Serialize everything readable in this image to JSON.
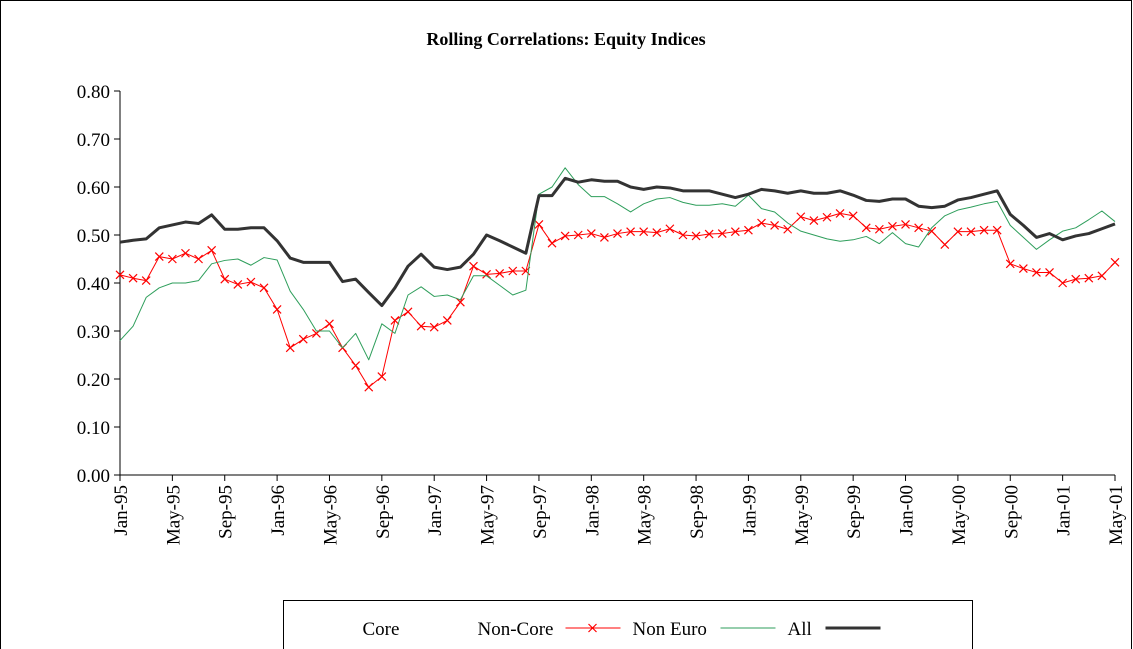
{
  "chart_data": {
    "type": "line",
    "title": "Rolling Correlations: Equity Indices",
    "categories": [
      "Jan-95",
      null,
      null,
      null,
      "May-95",
      null,
      null,
      null,
      "Sep-95",
      null,
      null,
      null,
      "Jan-96",
      null,
      null,
      null,
      "May-96",
      null,
      null,
      null,
      "Sep-96",
      null,
      null,
      null,
      "Jan-97",
      null,
      null,
      null,
      "May-97",
      null,
      null,
      null,
      "Sep-97",
      null,
      null,
      null,
      "Jan-98",
      null,
      null,
      null,
      "May-98",
      null,
      null,
      null,
      "Sep-98",
      null,
      null,
      null,
      "Jan-99",
      null,
      null,
      null,
      "May-99",
      null,
      null,
      null,
      "Sep-99",
      null,
      null,
      null,
      "Jan-00",
      null,
      null,
      null,
      "May-00",
      null,
      null,
      null,
      "Sep-00",
      null,
      null,
      null,
      "Jan-01",
      null,
      null,
      null,
      "May-01"
    ],
    "ylim": [
      0,
      0.8
    ],
    "yticks": [
      {
        "value": 0,
        "label": "0.00"
      },
      {
        "value": 0.1,
        "label": "0.10"
      },
      {
        "value": 0.2,
        "label": "0.20"
      },
      {
        "value": 0.3,
        "label": "0.30"
      },
      {
        "value": 0.4,
        "label": "0.40"
      },
      {
        "value": 0.5,
        "label": "0.50"
      },
      {
        "value": 0.6,
        "label": "0.60"
      },
      {
        "value": 0.7,
        "label": "0.70"
      },
      {
        "value": 0.8,
        "label": "0.80"
      }
    ],
    "grid": false,
    "legend": "bottom",
    "series": [
      {
        "name": "Core",
        "color": "#ffffff",
        "marker": "none",
        "width": 1,
        "values": [
          null,
          null,
          null,
          null,
          null,
          null,
          null,
          null,
          null,
          null,
          null,
          null,
          null,
          null,
          null,
          null,
          null,
          null,
          null,
          null,
          null,
          null,
          null,
          null,
          null,
          null,
          null,
          null,
          null,
          null,
          null,
          null,
          null,
          null,
          null,
          null,
          null,
          null,
          null,
          null,
          null,
          null,
          null,
          null,
          null,
          null,
          null,
          null,
          null,
          null,
          null,
          null,
          null,
          null,
          null,
          null,
          null,
          null,
          null,
          null,
          null,
          null,
          null,
          null,
          null,
          null,
          null,
          null,
          null,
          null,
          null,
          null,
          null,
          null,
          null,
          null,
          null
        ]
      },
      {
        "name": "Non-Core",
        "color": "#ff0000",
        "marker": "x",
        "width": 1,
        "values": [
          0.417,
          0.41,
          0.405,
          0.455,
          0.45,
          0.462,
          0.45,
          0.468,
          0.408,
          0.397,
          0.402,
          0.39,
          0.345,
          0.265,
          0.283,
          0.295,
          0.315,
          0.265,
          0.228,
          0.183,
          0.205,
          0.322,
          0.34,
          0.31,
          0.308,
          0.322,
          0.36,
          0.435,
          0.418,
          0.42,
          0.425,
          0.425,
          0.522,
          0.483,
          0.498,
          0.5,
          0.503,
          0.495,
          0.503,
          0.507,
          0.507,
          0.505,
          0.513,
          0.5,
          0.498,
          0.502,
          0.503,
          0.507,
          0.51,
          0.525,
          0.52,
          0.512,
          0.538,
          0.53,
          0.537,
          0.545,
          0.54,
          0.515,
          0.512,
          0.518,
          0.522,
          0.515,
          0.508,
          0.48,
          0.507,
          0.507,
          0.51,
          0.51,
          0.44,
          0.43,
          0.422,
          0.422,
          0.4,
          0.408,
          0.41,
          0.415,
          0.443
        ]
      },
      {
        "name": "Non Euro",
        "color": "#2e9e5b",
        "marker": "none",
        "width": 1,
        "values": [
          0.28,
          0.31,
          0.37,
          0.39,
          0.4,
          0.4,
          0.405,
          0.44,
          0.447,
          0.45,
          0.437,
          0.453,
          0.448,
          0.383,
          0.345,
          0.3,
          0.3,
          0.265,
          0.295,
          0.24,
          0.315,
          0.295,
          0.375,
          0.392,
          0.372,
          0.375,
          0.365,
          0.415,
          0.415,
          0.395,
          0.375,
          0.385,
          0.585,
          0.6,
          0.64,
          0.605,
          0.58,
          0.58,
          0.565,
          0.548,
          0.565,
          0.575,
          0.578,
          0.568,
          0.562,
          0.562,
          0.565,
          0.56,
          0.583,
          0.555,
          0.548,
          0.525,
          0.508,
          0.5,
          0.492,
          0.487,
          0.49,
          0.497,
          0.482,
          0.505,
          0.482,
          0.475,
          0.515,
          0.54,
          0.552,
          0.558,
          0.565,
          0.57,
          0.52,
          0.495,
          0.47,
          0.49,
          0.508,
          0.515,
          0.532,
          0.55,
          0.528
        ]
      },
      {
        "name": "All",
        "color": "#333333",
        "marker": "none",
        "width": 3,
        "values": [
          0.485,
          0.489,
          0.492,
          0.515,
          0.521,
          0.527,
          0.524,
          0.542,
          0.512,
          0.512,
          0.515,
          0.515,
          0.488,
          0.452,
          0.443,
          0.443,
          0.443,
          0.403,
          0.408,
          0.38,
          0.353,
          0.39,
          0.435,
          0.46,
          0.433,
          0.428,
          0.433,
          0.46,
          0.5,
          0.488,
          0.475,
          0.462,
          0.582,
          0.582,
          0.618,
          0.61,
          0.615,
          0.612,
          0.612,
          0.6,
          0.595,
          0.6,
          0.598,
          0.592,
          0.592,
          0.592,
          0.585,
          0.578,
          0.585,
          0.595,
          0.592,
          0.587,
          0.592,
          0.587,
          0.587,
          0.592,
          0.583,
          0.572,
          0.57,
          0.575,
          0.575,
          0.56,
          0.557,
          0.56,
          0.573,
          0.578,
          0.585,
          0.592,
          0.543,
          0.52,
          0.495,
          0.503,
          0.49,
          0.498,
          0.503,
          0.513,
          0.523
        ]
      }
    ]
  }
}
